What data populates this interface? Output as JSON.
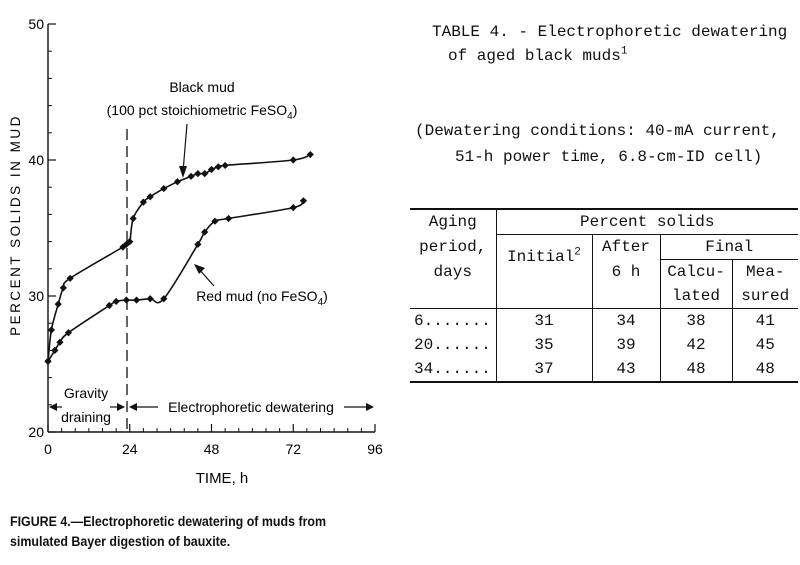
{
  "chart_data": {
    "type": "scatter",
    "title": "",
    "xlabel": "TIME, h",
    "ylabel": "PERCENT SOLIDS IN MUD",
    "xlim": [
      0,
      96
    ],
    "ylim": [
      20,
      50
    ],
    "xticks": [
      "0",
      "24",
      "48",
      "72",
      "96"
    ],
    "yticks": [
      "20",
      "30",
      "40",
      "50"
    ],
    "grid": false,
    "series": [
      {
        "name": "Black mud (100 pct stoichiometric FeSO4)",
        "x": [
          0,
          1,
          3,
          4.5,
          6.5,
          22,
          23,
          24,
          25,
          28,
          30,
          34,
          38,
          42,
          44,
          46,
          48,
          50,
          52,
          72,
          77
        ],
        "y": [
          25.2,
          27.5,
          29.4,
          30.6,
          31.3,
          33.6,
          33.8,
          34,
          35.7,
          36.9,
          37.3,
          37.9,
          38.4,
          38.8,
          39,
          39,
          39.3,
          39.5,
          39.6,
          40,
          40.4
        ]
      },
      {
        "name": "Red mud (no FeSO4)",
        "x": [
          0,
          2,
          3.5,
          6,
          18,
          20,
          23,
          26,
          30,
          34,
          44,
          46,
          49,
          53,
          72,
          75
        ],
        "y": [
          25.2,
          26,
          26.6,
          27.3,
          29.3,
          29.6,
          29.7,
          29.7,
          29.8,
          29.8,
          33.8,
          34.7,
          35.5,
          35.7,
          36.5,
          37
        ]
      }
    ],
    "annotations": {
      "black_line1": "Black mud",
      "black_line2_prefix": "(100 pct stoichiometric FeSO",
      "black_line2_sub": "4",
      "black_line2_suffix": ")",
      "red_prefix": "Red mud (no FeSO",
      "red_sub": "4",
      "red_suffix": ")",
      "gravity_line1": "Gravity",
      "gravity_line2": "draining",
      "electro": "Electrophoretic dewatering",
      "divider_x": 24
    }
  },
  "figure_caption": {
    "line1": "FIGURE 4.—Electrophoretic dewatering of muds from",
    "line2": "simulated Bayer digestion of bauxite."
  },
  "table": {
    "title_line1": "TABLE 4. - Electrophoretic dewatering",
    "title_line2": "of aged black muds",
    "title_sup": "1",
    "conditions_line1": "(Dewatering conditions: 40-mA current,",
    "conditions_line2": "51-h power time, 6.8-cm-ID cell)",
    "header": {
      "aging": [
        "Aging",
        "period,",
        "days"
      ],
      "percent_solids": "Percent solids",
      "initial": "Initial",
      "initial_sup": "2",
      "after": [
        "After",
        "6 h"
      ],
      "final": "Final",
      "calculated": [
        "Calcu-",
        "lated"
      ],
      "measured": [
        "Mea-",
        "sured"
      ]
    },
    "rows": [
      {
        "aging": "6.......",
        "initial": "31",
        "after": "34",
        "calculated": "38",
        "measured": "41"
      },
      {
        "aging": "20......",
        "initial": "35",
        "after": "39",
        "calculated": "42",
        "measured": "45"
      },
      {
        "aging": "34......",
        "initial": "37",
        "after": "43",
        "calculated": "48",
        "measured": "48"
      }
    ]
  }
}
